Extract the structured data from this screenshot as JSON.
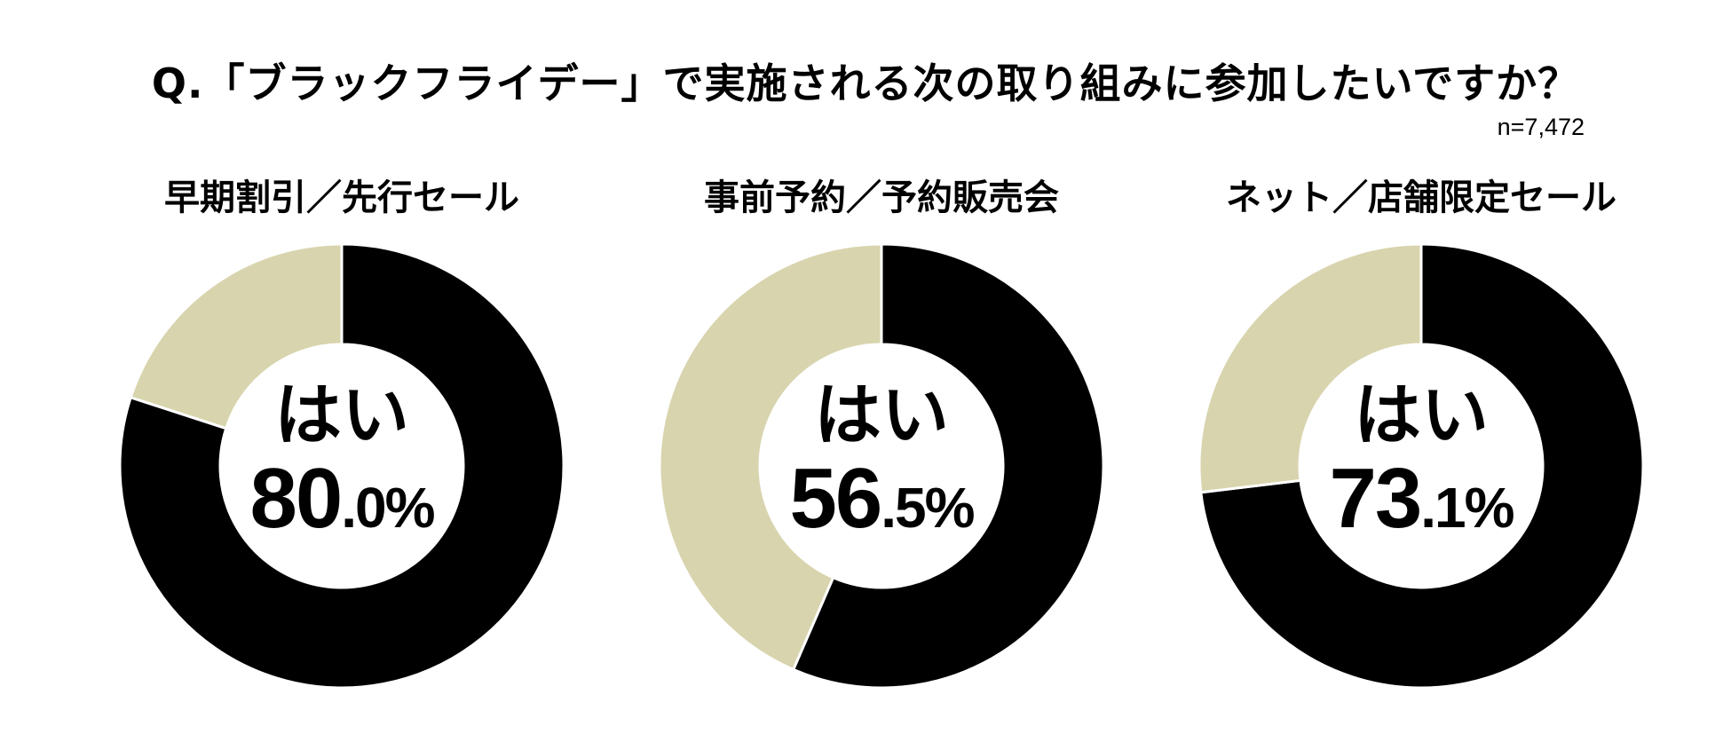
{
  "title": "Q.「ブラックフライデー」で実施される次の取り組みに参加したいですか？",
  "sample_size": "n=7,472",
  "colors": {
    "yes": "#000000",
    "no": "#d8d4ae",
    "separator": "#ffffff"
  },
  "chart_data": [
    {
      "type": "pie",
      "title": "早期割引／先行セール",
      "categories": [
        "はい",
        ""
      ],
      "values": [
        80.0,
        20.0
      ],
      "center_label": "はい",
      "center_value_int": "80",
      "center_value_dec": ".0%"
    },
    {
      "type": "pie",
      "title": "事前予約／予約販売会",
      "categories": [
        "はい",
        ""
      ],
      "values": [
        56.5,
        43.5
      ],
      "center_label": "はい",
      "center_value_int": "56",
      "center_value_dec": ".5%"
    },
    {
      "type": "pie",
      "title": "ネット／店舗限定セール",
      "categories": [
        "はい",
        ""
      ],
      "values": [
        73.1,
        26.9
      ],
      "center_label": "はい",
      "center_value_int": "73",
      "center_value_dec": ".1%"
    }
  ]
}
